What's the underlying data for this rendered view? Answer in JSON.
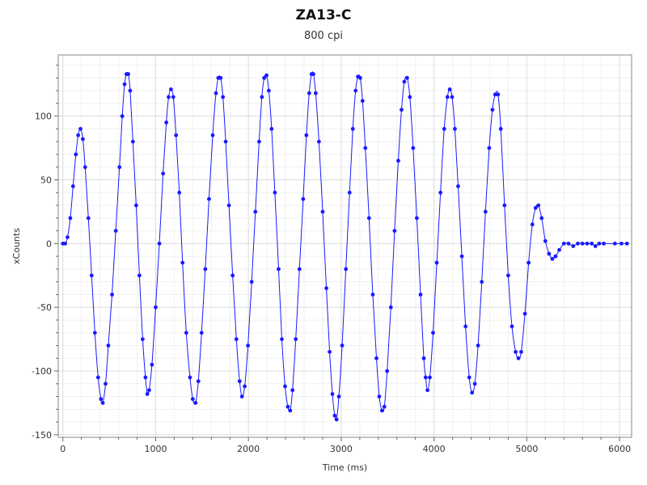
{
  "chart_data": {
    "type": "line",
    "title": "ZA13-C",
    "subtitle": "800 cpi",
    "xlabel": "Time (ms)",
    "ylabel": "xCounts",
    "xlim": [
      -50,
      6130
    ],
    "ylim": [
      -152,
      148
    ],
    "xticks": [
      0,
      1000,
      2000,
      3000,
      4000,
      5000,
      6000
    ],
    "yticks": [
      -150,
      -100,
      -50,
      0,
      50,
      100
    ],
    "grid": true,
    "series_color": "#1a1aff",
    "series": [
      {
        "markers": true,
        "points": [
          [
            0,
            0
          ],
          [
            25,
            0
          ],
          [
            50,
            5
          ],
          [
            80,
            20
          ],
          [
            110,
            45
          ],
          [
            140,
            70
          ],
          [
            165,
            85
          ],
          [
            190,
            90
          ],
          [
            215,
            82
          ],
          [
            240,
            60
          ],
          [
            275,
            20
          ],
          [
            310,
            -25
          ],
          [
            345,
            -70
          ],
          [
            380,
            -105
          ],
          [
            410,
            -122
          ],
          [
            430,
            -125
          ],
          [
            460,
            -110
          ],
          [
            490,
            -80
          ],
          [
            530,
            -40
          ],
          [
            570,
            10
          ],
          [
            610,
            60
          ],
          [
            640,
            100
          ],
          [
            665,
            125
          ],
          [
            685,
            133
          ],
          [
            705,
            133
          ],
          [
            725,
            120
          ],
          [
            755,
            80
          ],
          [
            790,
            30
          ],
          [
            825,
            -25
          ],
          [
            860,
            -75
          ],
          [
            890,
            -105
          ],
          [
            910,
            -118
          ],
          [
            930,
            -115
          ],
          [
            960,
            -95
          ],
          [
            1000,
            -50
          ],
          [
            1040,
            0
          ],
          [
            1080,
            55
          ],
          [
            1115,
            95
          ],
          [
            1140,
            115
          ],
          [
            1165,
            121
          ],
          [
            1190,
            115
          ],
          [
            1220,
            85
          ],
          [
            1255,
            40
          ],
          [
            1290,
            -15
          ],
          [
            1330,
            -70
          ],
          [
            1370,
            -105
          ],
          [
            1400,
            -122
          ],
          [
            1430,
            -125
          ],
          [
            1460,
            -108
          ],
          [
            1495,
            -70
          ],
          [
            1535,
            -20
          ],
          [
            1575,
            35
          ],
          [
            1615,
            85
          ],
          [
            1650,
            118
          ],
          [
            1675,
            130
          ],
          [
            1700,
            130
          ],
          [
            1725,
            115
          ],
          [
            1755,
            80
          ],
          [
            1790,
            30
          ],
          [
            1830,
            -25
          ],
          [
            1870,
            -75
          ],
          [
            1905,
            -108
          ],
          [
            1930,
            -120
          ],
          [
            1960,
            -112
          ],
          [
            1995,
            -80
          ],
          [
            2035,
            -30
          ],
          [
            2075,
            25
          ],
          [
            2115,
            80
          ],
          [
            2145,
            115
          ],
          [
            2170,
            130
          ],
          [
            2195,
            132
          ],
          [
            2220,
            120
          ],
          [
            2250,
            90
          ],
          [
            2285,
            40
          ],
          [
            2325,
            -20
          ],
          [
            2360,
            -75
          ],
          [
            2395,
            -112
          ],
          [
            2425,
            -128
          ],
          [
            2450,
            -131
          ],
          [
            2475,
            -115
          ],
          [
            2510,
            -75
          ],
          [
            2550,
            -20
          ],
          [
            2590,
            35
          ],
          [
            2625,
            85
          ],
          [
            2655,
            118
          ],
          [
            2680,
            133
          ],
          [
            2700,
            133
          ],
          [
            2725,
            118
          ],
          [
            2760,
            80
          ],
          [
            2800,
            25
          ],
          [
            2840,
            -35
          ],
          [
            2875,
            -85
          ],
          [
            2905,
            -118
          ],
          [
            2930,
            -135
          ],
          [
            2950,
            -138
          ],
          [
            2975,
            -120
          ],
          [
            3010,
            -80
          ],
          [
            3050,
            -20
          ],
          [
            3090,
            40
          ],
          [
            3125,
            90
          ],
          [
            3155,
            120
          ],
          [
            3180,
            131
          ],
          [
            3205,
            130
          ],
          [
            3230,
            112
          ],
          [
            3260,
            75
          ],
          [
            3300,
            20
          ],
          [
            3340,
            -40
          ],
          [
            3380,
            -90
          ],
          [
            3410,
            -120
          ],
          [
            3440,
            -131
          ],
          [
            3465,
            -128
          ],
          [
            3495,
            -100
          ],
          [
            3535,
            -50
          ],
          [
            3575,
            10
          ],
          [
            3615,
            65
          ],
          [
            3650,
            105
          ],
          [
            3680,
            127
          ],
          [
            3710,
            130
          ],
          [
            3740,
            115
          ],
          [
            3775,
            75
          ],
          [
            3815,
            20
          ],
          [
            3855,
            -40
          ],
          [
            3890,
            -90
          ],
          [
            3910,
            -105
          ],
          [
            3930,
            -115
          ],
          [
            3955,
            -105
          ],
          [
            3990,
            -70
          ],
          [
            4030,
            -15
          ],
          [
            4070,
            40
          ],
          [
            4110,
            90
          ],
          [
            4145,
            115
          ],
          [
            4170,
            121
          ],
          [
            4195,
            115
          ],
          [
            4225,
            90
          ],
          [
            4260,
            45
          ],
          [
            4300,
            -10
          ],
          [
            4340,
            -65
          ],
          [
            4380,
            -105
          ],
          [
            4410,
            -117
          ],
          [
            4440,
            -110
          ],
          [
            4475,
            -80
          ],
          [
            4515,
            -30
          ],
          [
            4555,
            25
          ],
          [
            4595,
            75
          ],
          [
            4630,
            105
          ],
          [
            4660,
            117
          ],
          [
            4690,
            117
          ],
          [
            4720,
            90
          ],
          [
            4760,
            30
          ],
          [
            4800,
            -25
          ],
          [
            4840,
            -65
          ],
          [
            4880,
            -85
          ],
          [
            4910,
            -90
          ],
          [
            4940,
            -85
          ],
          [
            4980,
            -55
          ],
          [
            5020,
            -15
          ],
          [
            5060,
            15
          ],
          [
            5095,
            28
          ],
          [
            5125,
            30
          ],
          [
            5160,
            20
          ],
          [
            5200,
            2
          ],
          [
            5240,
            -8
          ],
          [
            5275,
            -12
          ],
          [
            5310,
            -10
          ],
          [
            5350,
            -5
          ],
          [
            5400,
            0
          ],
          [
            5450,
            0
          ],
          [
            5500,
            -2
          ],
          [
            5550,
            0
          ],
          [
            5600,
            0
          ],
          [
            5650,
            0
          ],
          [
            5700,
            0
          ],
          [
            5740,
            -2
          ],
          [
            5780,
            0
          ],
          [
            5830,
            0
          ],
          [
            5950,
            0
          ],
          [
            6020,
            0
          ],
          [
            6080,
            0
          ]
        ]
      }
    ]
  }
}
